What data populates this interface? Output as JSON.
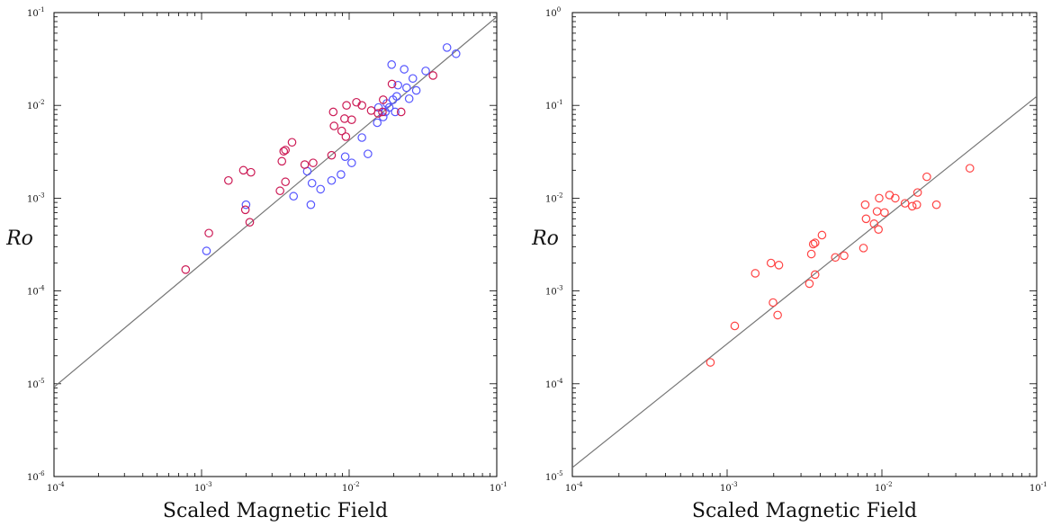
{
  "chart_data": [
    {
      "type": "scatter",
      "xlabel": "Scaled Magnetic Field",
      "ylabel": "Ro",
      "xscale": "log",
      "yscale": "log",
      "xlim": [
        0.0001,
        0.1
      ],
      "ylim": [
        1e-06,
        0.1
      ],
      "x_ticks": [
        {
          "base": "10",
          "exp": "-4"
        },
        {
          "base": "10",
          "exp": "-3"
        },
        {
          "base": "10",
          "exp": "-2"
        },
        {
          "base": "10",
          "exp": "-1"
        }
      ],
      "y_ticks": [
        {
          "base": "10",
          "exp": "-6"
        },
        {
          "base": "10",
          "exp": "-5"
        },
        {
          "base": "10",
          "exp": "-4"
        },
        {
          "base": "10",
          "exp": "-3"
        },
        {
          "base": "10",
          "exp": "-2"
        },
        {
          "base": "10",
          "exp": "-1"
        }
      ],
      "grid": false,
      "fit_line": {
        "color": "#777777",
        "points": [
          [
            0.0001,
            9.2e-06
          ],
          [
            0.1,
            0.09
          ]
        ]
      },
      "series": [
        {
          "color": "#5555ff",
          "marker": "circle-open",
          "points": [
            [
              0.00108,
              0.00027
            ],
            [
              0.002,
              0.00085
            ],
            [
              0.0042,
              0.00105
            ],
            [
              0.0052,
              0.00195
            ],
            [
              0.0055,
              0.00085
            ],
            [
              0.0056,
              0.00145
            ],
            [
              0.0064,
              0.00125
            ],
            [
              0.0076,
              0.00155
            ],
            [
              0.0088,
              0.0018
            ],
            [
              0.0094,
              0.0028
            ],
            [
              0.0104,
              0.0024
            ],
            [
              0.0122,
              0.0045
            ],
            [
              0.0134,
              0.003
            ],
            [
              0.0155,
              0.0065
            ],
            [
              0.0158,
              0.0095
            ],
            [
              0.017,
              0.0075
            ],
            [
              0.0176,
              0.0085
            ],
            [
              0.018,
              0.0105
            ],
            [
              0.0187,
              0.0095
            ],
            [
              0.0194,
              0.0275
            ],
            [
              0.0198,
              0.0115
            ],
            [
              0.0205,
              0.0085
            ],
            [
              0.021,
              0.0125
            ],
            [
              0.0214,
              0.0165
            ],
            [
              0.0236,
              0.0245
            ],
            [
              0.0245,
              0.0155
            ],
            [
              0.0255,
              0.0118
            ],
            [
              0.027,
              0.0195
            ],
            [
              0.0285,
              0.0145
            ],
            [
              0.033,
              0.0235
            ],
            [
              0.046,
              0.042
            ],
            [
              0.053,
              0.036
            ]
          ]
        },
        {
          "color": "#cc1a55",
          "marker": "circle-open",
          "points": [
            [
              0.00078,
              0.00017
            ],
            [
              0.00112,
              0.00042
            ],
            [
              0.00152,
              0.00155
            ],
            [
              0.00192,
              0.002
            ],
            [
              0.00198,
              0.00075
            ],
            [
              0.00212,
              0.00055
            ],
            [
              0.00216,
              0.0019
            ],
            [
              0.0034,
              0.0012
            ],
            [
              0.0035,
              0.0025
            ],
            [
              0.0036,
              0.0032
            ],
            [
              0.0037,
              0.0033
            ],
            [
              0.0037,
              0.0015
            ],
            [
              0.0041,
              0.004
            ],
            [
              0.005,
              0.0023
            ],
            [
              0.0057,
              0.0024
            ],
            [
              0.0076,
              0.0029
            ],
            [
              0.0078,
              0.0085
            ],
            [
              0.0079,
              0.006
            ],
            [
              0.0089,
              0.0053
            ],
            [
              0.0093,
              0.0072
            ],
            [
              0.0095,
              0.0046
            ],
            [
              0.0096,
              0.01
            ],
            [
              0.0104,
              0.007
            ],
            [
              0.0112,
              0.0108
            ],
            [
              0.0122,
              0.01
            ],
            [
              0.0141,
              0.0088
            ],
            [
              0.0157,
              0.0082
            ],
            [
              0.0168,
              0.0085
            ],
            [
              0.017,
              0.0115
            ],
            [
              0.0195,
              0.017
            ],
            [
              0.0225,
              0.0085
            ],
            [
              0.037,
              0.021
            ]
          ]
        }
      ]
    },
    {
      "type": "scatter",
      "xlabel": "Scaled Magnetic Field",
      "ylabel": "Ro",
      "xscale": "log",
      "yscale": "log",
      "xlim": [
        0.0001,
        0.1
      ],
      "ylim": [
        1e-05,
        1
      ],
      "x_ticks": [
        {
          "base": "10",
          "exp": "-4"
        },
        {
          "base": "10",
          "exp": "-3"
        },
        {
          "base": "10",
          "exp": "-2"
        },
        {
          "base": "10",
          "exp": "-1"
        }
      ],
      "y_ticks": [
        {
          "base": "10",
          "exp": "-5"
        },
        {
          "base": "10",
          "exp": "-4"
        },
        {
          "base": "10",
          "exp": "-3"
        },
        {
          "base": "10",
          "exp": "-2"
        },
        {
          "base": "10",
          "exp": "-1"
        },
        {
          "base": "10",
          "exp": "0"
        }
      ],
      "grid": false,
      "fit_line": {
        "color": "#777777",
        "points": [
          [
            0.0001,
            1.25e-05
          ],
          [
            0.1,
            0.125
          ]
        ]
      },
      "series": [
        {
          "color": "#ff4444",
          "marker": "circle-open",
          "points": [
            [
              0.00078,
              0.00017
            ],
            [
              0.00112,
              0.00042
            ],
            [
              0.00152,
              0.00155
            ],
            [
              0.00192,
              0.002
            ],
            [
              0.00198,
              0.00075
            ],
            [
              0.00212,
              0.00055
            ],
            [
              0.00216,
              0.0019
            ],
            [
              0.0034,
              0.0012
            ],
            [
              0.0035,
              0.0025
            ],
            [
              0.0036,
              0.0032
            ],
            [
              0.0037,
              0.0033
            ],
            [
              0.0037,
              0.0015
            ],
            [
              0.0041,
              0.004
            ],
            [
              0.005,
              0.0023
            ],
            [
              0.0057,
              0.0024
            ],
            [
              0.0076,
              0.0029
            ],
            [
              0.0078,
              0.0085
            ],
            [
              0.0079,
              0.006
            ],
            [
              0.0089,
              0.0053
            ],
            [
              0.0093,
              0.0072
            ],
            [
              0.0095,
              0.0046
            ],
            [
              0.0096,
              0.01
            ],
            [
              0.0104,
              0.007
            ],
            [
              0.0112,
              0.0108
            ],
            [
              0.0122,
              0.01
            ],
            [
              0.0141,
              0.0088
            ],
            [
              0.0157,
              0.0082
            ],
            [
              0.0168,
              0.0085
            ],
            [
              0.017,
              0.0115
            ],
            [
              0.0195,
              0.017
            ],
            [
              0.0225,
              0.0085
            ],
            [
              0.037,
              0.021
            ]
          ]
        }
      ]
    }
  ]
}
